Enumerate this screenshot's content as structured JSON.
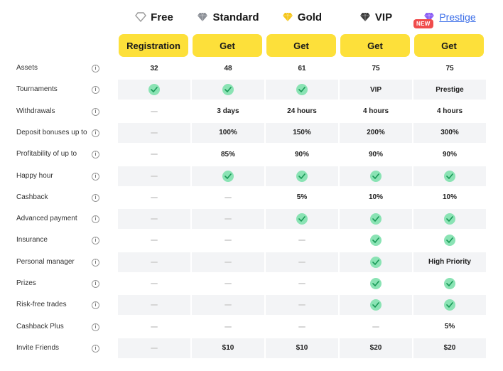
{
  "plans": [
    {
      "name": "Free",
      "icon": "diamond-outline-icon",
      "color": "#9a9a9a",
      "button": "Registration"
    },
    {
      "name": "Standard",
      "icon": "diamond-silver-icon",
      "color": "#8b8f96",
      "button": "Get"
    },
    {
      "name": "Gold",
      "icon": "diamond-gold-icon",
      "color": "#f5c518",
      "button": "Get"
    },
    {
      "name": "VIP",
      "icon": "diamond-dark-icon",
      "color": "#3a3a3a",
      "button": "Get"
    },
    {
      "name": "Prestige",
      "icon": "diamond-purple-icon",
      "color": "#8a5cf5",
      "button": "Get",
      "badge": "NEW"
    }
  ],
  "features": [
    {
      "label": "Assets",
      "values": [
        "32",
        "48",
        "61",
        "75",
        "75"
      ]
    },
    {
      "label": "Tournaments",
      "values": [
        "check",
        "check",
        "check",
        "VIP",
        "Prestige"
      ]
    },
    {
      "label": "Withdrawals",
      "values": [
        "-",
        "3 days",
        "24 hours",
        "4 hours",
        "4 hours"
      ]
    },
    {
      "label": "Deposit bonuses up to",
      "values": [
        "-",
        "100%",
        "150%",
        "200%",
        "300%"
      ]
    },
    {
      "label": "Profitability of up to",
      "values": [
        "-",
        "85%",
        "90%",
        "90%",
        "90%"
      ]
    },
    {
      "label": "Happy hour",
      "values": [
        "-",
        "check",
        "check",
        "check",
        "check"
      ]
    },
    {
      "label": "Cashback",
      "values": [
        "-",
        "-",
        "5%",
        "10%",
        "10%"
      ]
    },
    {
      "label": "Advanced payment",
      "values": [
        "-",
        "-",
        "check",
        "check",
        "check"
      ]
    },
    {
      "label": "Insurance",
      "values": [
        "-",
        "-",
        "-",
        "check",
        "check"
      ]
    },
    {
      "label": "Personal manager",
      "values": [
        "-",
        "-",
        "-",
        "check",
        "High Priority"
      ]
    },
    {
      "label": "Prizes",
      "values": [
        "-",
        "-",
        "-",
        "check",
        "check"
      ]
    },
    {
      "label": "Risk-free trades",
      "values": [
        "-",
        "-",
        "-",
        "check",
        "check"
      ]
    },
    {
      "label": "Cashback Plus",
      "values": [
        "-",
        "-",
        "-",
        "-",
        "5%"
      ]
    },
    {
      "label": "Invite Friends",
      "values": [
        "-",
        "$10",
        "$10",
        "$20",
        "$20"
      ]
    }
  ],
  "accent": "#fde03a",
  "check_color": "#8ae3b4"
}
